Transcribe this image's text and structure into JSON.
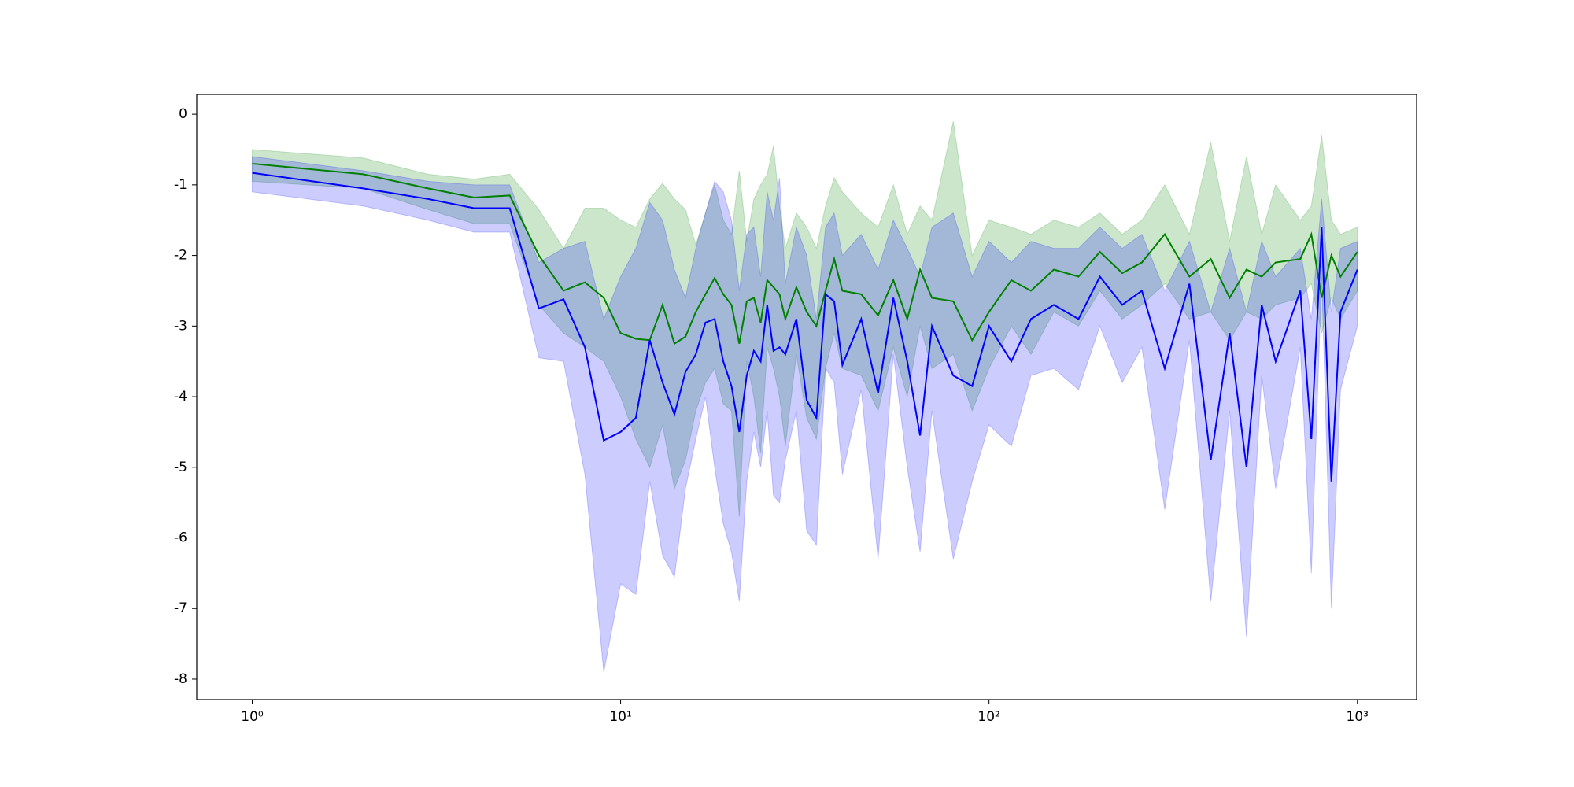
{
  "chart_data": {
    "type": "line",
    "xscale": "log",
    "x": [
      1,
      2,
      3,
      4,
      5,
      6,
      7,
      8,
      9,
      10,
      11,
      12,
      13,
      14,
      15,
      16,
      17,
      18,
      19,
      20,
      21,
      22,
      23,
      24,
      25,
      26,
      27,
      28,
      30,
      32,
      34,
      36,
      38,
      40,
      45,
      50,
      55,
      60,
      65,
      70,
      80,
      90,
      100,
      115,
      130,
      150,
      175,
      200,
      230,
      260,
      300,
      350,
      400,
      450,
      500,
      550,
      600,
      700,
      750,
      800,
      850,
      900,
      1000
    ],
    "series": [
      {
        "color": "#008000",
        "values": [
          -0.7,
          -0.85,
          -1.05,
          -1.18,
          -1.15,
          -2.0,
          -2.5,
          -2.38,
          -2.6,
          -3.1,
          -3.18,
          -3.2,
          -2.7,
          -3.25,
          -3.15,
          -2.8,
          -2.55,
          -2.32,
          -2.55,
          -2.7,
          -3.25,
          -2.65,
          -2.6,
          -2.95,
          -2.35,
          -2.45,
          -2.55,
          -2.9,
          -2.45,
          -2.8,
          -3.0,
          -2.5,
          -2.05,
          -2.5,
          -2.55,
          -2.85,
          -2.35,
          -2.9,
          -2.2,
          -2.6,
          -2.65,
          -3.2,
          -2.8,
          -2.35,
          -2.5,
          -2.2,
          -2.3,
          -1.95,
          -2.25,
          -2.1,
          -1.7,
          -2.3,
          -2.05,
          -2.6,
          -2.2,
          -2.3,
          -2.1,
          -2.05,
          -1.7,
          -2.6,
          -2.0,
          -2.3,
          -1.95
        ],
        "upper": [
          -0.5,
          -0.62,
          -0.85,
          -0.92,
          -0.85,
          -1.35,
          -1.9,
          -1.33,
          -1.33,
          -1.5,
          -1.6,
          -1.2,
          -0.98,
          -1.2,
          -1.35,
          -1.85,
          -1.4,
          -1.0,
          -1.5,
          -1.7,
          -0.8,
          -1.8,
          -1.2,
          -1.0,
          -0.85,
          -0.45,
          -1.3,
          -1.9,
          -1.4,
          -1.6,
          -1.9,
          -1.3,
          -0.9,
          -1.1,
          -1.4,
          -1.6,
          -1.0,
          -1.7,
          -1.3,
          -1.5,
          -0.1,
          -2.0,
          -1.5,
          -1.6,
          -1.7,
          -1.5,
          -1.6,
          -1.4,
          -1.7,
          -1.5,
          -1.0,
          -1.7,
          -0.4,
          -1.8,
          -0.6,
          -1.7,
          -1.0,
          -1.5,
          -1.3,
          -0.3,
          -1.5,
          -1.7,
          -1.6
        ],
        "lower": [
          -0.95,
          -1.05,
          -1.35,
          -1.55,
          -1.55,
          -2.7,
          -3.1,
          -3.3,
          -3.5,
          -4.0,
          -4.6,
          -5.0,
          -4.4,
          -5.3,
          -4.9,
          -4.2,
          -3.8,
          -3.6,
          -4.1,
          -4.2,
          -5.7,
          -3.5,
          -4.0,
          -4.8,
          -3.3,
          -3.6,
          -4.0,
          -4.7,
          -3.4,
          -4.3,
          -4.6,
          -3.6,
          -3.1,
          -3.6,
          -3.7,
          -4.2,
          -3.3,
          -4.0,
          -3.0,
          -3.6,
          -3.4,
          -4.2,
          -3.6,
          -3.0,
          -3.4,
          -2.8,
          -3.0,
          -2.5,
          -2.9,
          -2.7,
          -2.4,
          -2.9,
          -2.8,
          -3.2,
          -2.8,
          -2.9,
          -2.7,
          -2.6,
          -2.4,
          -3.1,
          -2.6,
          -2.9,
          -2.5
        ]
      },
      {
        "color": "#0000ff",
        "values": [
          -0.83,
          -1.05,
          -1.2,
          -1.33,
          -1.33,
          -2.75,
          -2.62,
          -3.3,
          -4.62,
          -4.5,
          -4.3,
          -3.2,
          -3.8,
          -4.25,
          -3.65,
          -3.4,
          -2.95,
          -2.9,
          -3.5,
          -3.85,
          -4.5,
          -3.7,
          -3.35,
          -3.5,
          -2.7,
          -3.35,
          -3.3,
          -3.4,
          -2.9,
          -4.05,
          -4.3,
          -2.55,
          -2.65,
          -3.55,
          -2.9,
          -3.95,
          -2.6,
          -3.5,
          -4.55,
          -3.0,
          -3.7,
          -3.85,
          -3.0,
          -3.5,
          -2.9,
          -2.7,
          -2.9,
          -2.3,
          -2.7,
          -2.5,
          -3.6,
          -2.4,
          -4.9,
          -3.1,
          -5.0,
          -2.7,
          -3.5,
          -2.5,
          -4.6,
          -1.6,
          -5.2,
          -2.8,
          -2.2
        ],
        "upper": [
          -0.6,
          -0.8,
          -0.95,
          -1.0,
          -1.0,
          -2.1,
          -1.9,
          -1.8,
          -2.9,
          -2.3,
          -1.9,
          -1.25,
          -1.5,
          -2.2,
          -2.6,
          -1.9,
          -1.4,
          -0.95,
          -1.1,
          -1.5,
          -2.5,
          -1.7,
          -1.6,
          -2.3,
          -1.1,
          -1.5,
          -0.9,
          -2.4,
          -1.6,
          -2.0,
          -2.9,
          -1.6,
          -1.4,
          -2.0,
          -1.7,
          -2.2,
          -1.5,
          -1.9,
          -2.3,
          -1.6,
          -1.4,
          -2.3,
          -1.8,
          -2.1,
          -1.8,
          -1.9,
          -1.9,
          -1.6,
          -1.9,
          -1.7,
          -2.5,
          -1.8,
          -2.8,
          -1.9,
          -2.8,
          -1.8,
          -2.3,
          -1.9,
          -2.9,
          -1.2,
          -2.8,
          -1.9,
          -1.8
        ],
        "lower": [
          -1.1,
          -1.3,
          -1.5,
          -1.67,
          -1.67,
          -3.45,
          -3.5,
          -5.1,
          -7.9,
          -6.65,
          -6.8,
          -5.2,
          -6.25,
          -6.55,
          -5.3,
          -4.6,
          -4.0,
          -5.0,
          -5.8,
          -6.2,
          -6.9,
          -5.2,
          -4.5,
          -5.0,
          -4.2,
          -5.4,
          -5.5,
          -4.9,
          -4.2,
          -5.9,
          -6.1,
          -3.6,
          -3.8,
          -5.1,
          -3.9,
          -6.3,
          -3.4,
          -5.0,
          -6.2,
          -4.2,
          -6.3,
          -5.2,
          -4.4,
          -4.7,
          -3.7,
          -3.6,
          -3.9,
          -3.0,
          -3.8,
          -3.3,
          -5.6,
          -3.2,
          -6.9,
          -4.2,
          -7.4,
          -3.7,
          -5.3,
          -3.3,
          -6.5,
          -2.3,
          -7.0,
          -3.9,
          -3.0
        ]
      }
    ],
    "band_opacity": 0.2,
    "xlim": [
      0.707,
      1448
    ],
    "ylim": [
      -8.29,
      0.28
    ],
    "xticks": [
      {
        "value": 1,
        "label": "10⁰"
      },
      {
        "value": 10,
        "label": "10¹"
      },
      {
        "value": 100,
        "label": "10²"
      },
      {
        "value": 1000,
        "label": "10³"
      }
    ],
    "yticks": [
      0,
      -1,
      -2,
      -3,
      -4,
      -5,
      -6,
      -7,
      -8
    ]
  }
}
